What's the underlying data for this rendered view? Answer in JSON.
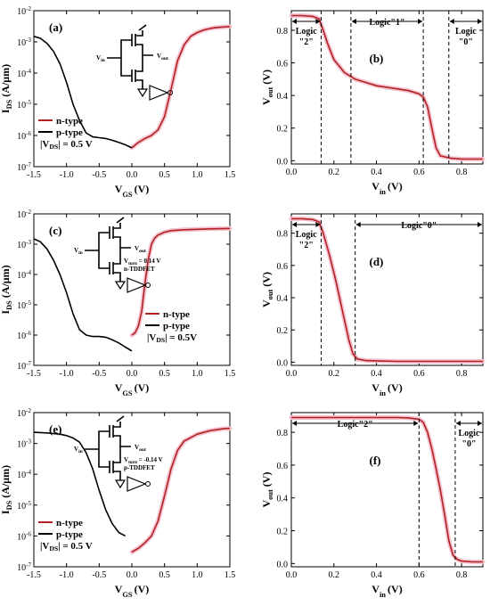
{
  "colors": {
    "n_type": "#b22222",
    "p_type": "#000000",
    "halo": "#f4c2cf"
  },
  "panels": [
    {
      "id": "a",
      "kind": "ids",
      "tag": "(a)",
      "legend": [
        "n-type",
        "p-type",
        "|VDS| = 0.5 V"
      ],
      "device_label": [],
      "circuit": {
        "vin": "Vin",
        "vout": "Vout"
      }
    },
    {
      "id": "b",
      "kind": "vtc",
      "tag": "(b)",
      "regions": [
        {
          "label": [
            "Logic",
            "\"2\""
          ],
          "from": 0.0,
          "to": 0.14
        },
        {
          "label": [
            "Logic\"1\""
          ],
          "from": 0.28,
          "to": 0.62
        },
        {
          "label": [
            "Logic",
            "\"0\""
          ],
          "from": 0.74,
          "to": 0.9
        }
      ],
      "dashed_x": [
        0.14,
        0.28,
        0.62,
        0.74
      ]
    },
    {
      "id": "c",
      "kind": "ids",
      "tag": "(c)",
      "legend": [
        "n-type",
        "p-type",
        "|VDS| = 0.5V"
      ],
      "device_label": [
        "Vturn = 0.14 V",
        "n-TDDFET"
      ],
      "circuit": {
        "vin": "Vin",
        "vout": "Vout"
      }
    },
    {
      "id": "d",
      "kind": "vtc",
      "tag": "(d)",
      "regions": [
        {
          "label": [
            "Logic",
            "\"2\""
          ],
          "from": 0.0,
          "to": 0.14
        },
        {
          "label": [
            "Logic\"0\""
          ],
          "from": 0.3,
          "to": 0.9
        }
      ],
      "dashed_x": [
        0.14,
        0.3
      ]
    },
    {
      "id": "e",
      "kind": "ids",
      "tag": "(e)",
      "legend": [
        "n-type",
        "p-type",
        "|VDS| = 0.5 V"
      ],
      "device_label": [
        "Vturn = -0.14 V",
        "p-TDDFET"
      ],
      "circuit": {
        "vin": "Vin",
        "vout": "Vout"
      }
    },
    {
      "id": "f",
      "kind": "vtc",
      "tag": "(f)",
      "regions": [
        {
          "label": [
            "Logic\"2\""
          ],
          "from": 0.0,
          "to": 0.6
        },
        {
          "label": [
            "Logic",
            "\"0\""
          ],
          "from": 0.77,
          "to": 0.9
        }
      ],
      "dashed_x": [
        0.6,
        0.77
      ]
    }
  ],
  "chart_data": [
    {
      "panel": "a",
      "type": "line",
      "yscale": "log",
      "xlabel": "VGS (V)",
      "ylabel": "IDS (A/μm)",
      "xlim": [
        -1.5,
        1.5
      ],
      "ylim": [
        1e-07,
        0.01
      ],
      "xticks": [
        "-1.5",
        "-1.0",
        "-0.5",
        "0.0",
        "0.5",
        "1.0",
        "1.5"
      ],
      "yticks": [
        "10-7",
        "10-6",
        "10-5",
        "10-4",
        "10-3",
        "10-2"
      ],
      "series": [
        {
          "name": "n-type",
          "x": [
            0,
            0.1,
            0.2,
            0.3,
            0.4,
            0.5,
            0.6,
            0.7,
            0.8,
            0.9,
            1.0,
            1.1,
            1.2,
            1.3,
            1.4,
            1.5
          ],
          "y": [
            4e-07,
            6e-07,
            8e-07,
            1e-06,
            1.5e-06,
            4e-06,
            3e-05,
            0.00025,
            0.0008,
            0.0015,
            0.002,
            0.0024,
            0.0027,
            0.0029,
            0.003,
            0.0031
          ]
        },
        {
          "name": "p-type",
          "x": [
            -1.5,
            -1.4,
            -1.3,
            -1.2,
            -1.1,
            -1.0,
            -0.9,
            -0.8,
            -0.7,
            -0.6,
            -0.5,
            -0.4,
            -0.3,
            -0.2,
            -0.1,
            0.0
          ],
          "y": [
            0.0015,
            0.0013,
            0.0009,
            0.0005,
            0.0002,
            5e-05,
            1e-05,
            3e-06,
            1.2e-06,
            9e-07,
            8.5e-07,
            8e-07,
            7e-07,
            6e-07,
            5e-07,
            4e-07
          ]
        }
      ]
    },
    {
      "panel": "b",
      "type": "line",
      "xlabel": "Vin (V)",
      "ylabel": "Vout (V)",
      "xlim": [
        0,
        0.9
      ],
      "ylim": [
        -0.02,
        0.92
      ],
      "xticks": [
        "0.0",
        "0.2",
        "0.4",
        "0.6",
        "0.8"
      ],
      "yticks": [
        "0.0",
        "0.2",
        "0.4",
        "0.6",
        "0.8"
      ],
      "series": [
        {
          "x": [
            0.0,
            0.05,
            0.1,
            0.13,
            0.15,
            0.17,
            0.2,
            0.25,
            0.3,
            0.35,
            0.4,
            0.45,
            0.5,
            0.55,
            0.6,
            0.62,
            0.64,
            0.66,
            0.68,
            0.7,
            0.75,
            0.8,
            0.85,
            0.9
          ],
          "y": [
            0.89,
            0.89,
            0.885,
            0.87,
            0.8,
            0.72,
            0.62,
            0.54,
            0.5,
            0.48,
            0.46,
            0.45,
            0.44,
            0.43,
            0.41,
            0.39,
            0.33,
            0.2,
            0.08,
            0.03,
            0.015,
            0.01,
            0.01,
            0.01
          ]
        }
      ]
    },
    {
      "panel": "c",
      "type": "line",
      "yscale": "log",
      "xlabel": "VGS (V)",
      "ylabel": "IDS (A/μm)",
      "xlim": [
        -1.5,
        1.5
      ],
      "ylim": [
        1e-07,
        0.01
      ],
      "xticks": [
        "-1.5",
        "-1.0",
        "-0.5",
        "0.0",
        "0.5",
        "1.0",
        "1.5"
      ],
      "yticks": [
        "10-7",
        "10-6",
        "10-5",
        "10-4",
        "10-3",
        "10-2"
      ],
      "series": [
        {
          "name": "n-type",
          "x": [
            0,
            0.05,
            0.1,
            0.15,
            0.2,
            0.25,
            0.3,
            0.35,
            0.4,
            0.5,
            0.6,
            0.8,
            1.0,
            1.2,
            1.5
          ],
          "y": [
            1e-06,
            1.2e-06,
            2e-06,
            6e-06,
            5e-05,
            0.0003,
            0.001,
            0.0016,
            0.002,
            0.0025,
            0.0028,
            0.003,
            0.0031,
            0.0032,
            0.0033
          ]
        },
        {
          "name": "p-type",
          "x": [
            -1.5,
            -1.4,
            -1.3,
            -1.2,
            -1.1,
            -1.0,
            -0.9,
            -0.8,
            -0.7,
            -0.6,
            -0.5,
            -0.4,
            -0.3,
            -0.2,
            -0.1,
            0.0
          ],
          "y": [
            0.0015,
            0.0012,
            0.0007,
            0.0003,
            0.0001,
            2.5e-05,
            5e-06,
            1.5e-06,
            1e-06,
            9e-07,
            9e-07,
            8.5e-07,
            7e-07,
            5.5e-07,
            4e-07,
            3e-07
          ]
        }
      ]
    },
    {
      "panel": "d",
      "type": "line",
      "xlabel": "Vin (V)",
      "ylabel": "Vout (V)",
      "xlim": [
        0,
        0.9
      ],
      "ylim": [
        -0.02,
        0.92
      ],
      "xticks": [
        "0.0",
        "0.2",
        "0.4",
        "0.6",
        "0.8"
      ],
      "yticks": [
        "0.0",
        "0.2",
        "0.4",
        "0.6",
        "0.8"
      ],
      "series": [
        {
          "x": [
            0.0,
            0.05,
            0.1,
            0.13,
            0.15,
            0.18,
            0.21,
            0.24,
            0.27,
            0.29,
            0.31,
            0.35,
            0.4,
            0.5,
            0.6,
            0.7,
            0.8,
            0.9
          ],
          "y": [
            0.89,
            0.89,
            0.885,
            0.87,
            0.8,
            0.66,
            0.5,
            0.32,
            0.14,
            0.05,
            0.02,
            0.01,
            0.008,
            0.005,
            0.005,
            0.005,
            0.005,
            0.005
          ]
        }
      ]
    },
    {
      "panel": "e",
      "type": "line",
      "yscale": "log",
      "xlabel": "VGS (V)",
      "ylabel": "IDS (A/μm)",
      "xlim": [
        -1.5,
        1.5
      ],
      "ylim": [
        1e-07,
        0.01
      ],
      "xticks": [
        "-1.5",
        "-1.0",
        "-0.5",
        "0.0",
        "0.5",
        "1.0",
        "1.5"
      ],
      "yticks": [
        "10-7",
        "10-6",
        "10-5",
        "10-4",
        "10-3",
        "10-2"
      ],
      "series": [
        {
          "name": "n-type",
          "x": [
            0,
            0.1,
            0.2,
            0.3,
            0.4,
            0.5,
            0.6,
            0.7,
            0.8,
            1.0,
            1.2,
            1.4,
            1.5
          ],
          "y": [
            3e-07,
            4e-07,
            6e-07,
            1e-06,
            3e-06,
            2e-05,
            0.00015,
            0.0006,
            0.0012,
            0.002,
            0.0026,
            0.003,
            0.0031
          ]
        },
        {
          "name": "p-type",
          "x": [
            -1.5,
            -1.3,
            -1.1,
            -1.0,
            -0.9,
            -0.8,
            -0.7,
            -0.6,
            -0.5,
            -0.4,
            -0.3,
            -0.2,
            -0.1
          ],
          "y": [
            0.0023,
            0.0022,
            0.002,
            0.0018,
            0.0015,
            0.0011,
            0.0005,
            0.00015,
            3e-05,
            7e-06,
            2.5e-06,
            1.3e-06,
            1e-06
          ]
        }
      ]
    },
    {
      "panel": "f",
      "type": "line",
      "xlabel": "Vin (V)",
      "ylabel": "Vout (V)",
      "xlim": [
        0,
        0.9
      ],
      "ylim": [
        -0.02,
        0.92
      ],
      "xticks": [
        "0.0",
        "0.2",
        "0.4",
        "0.6",
        "0.8"
      ],
      "yticks": [
        "0.0",
        "0.2",
        "0.4",
        "0.6",
        "0.8"
      ],
      "series": [
        {
          "x": [
            0.0,
            0.1,
            0.2,
            0.3,
            0.4,
            0.5,
            0.55,
            0.6,
            0.62,
            0.64,
            0.66,
            0.68,
            0.7,
            0.72,
            0.74,
            0.76,
            0.78,
            0.8,
            0.85,
            0.9
          ],
          "y": [
            0.89,
            0.89,
            0.89,
            0.89,
            0.89,
            0.89,
            0.888,
            0.88,
            0.86,
            0.8,
            0.7,
            0.58,
            0.45,
            0.3,
            0.14,
            0.05,
            0.025,
            0.015,
            0.01,
            0.01
          ]
        }
      ]
    }
  ]
}
